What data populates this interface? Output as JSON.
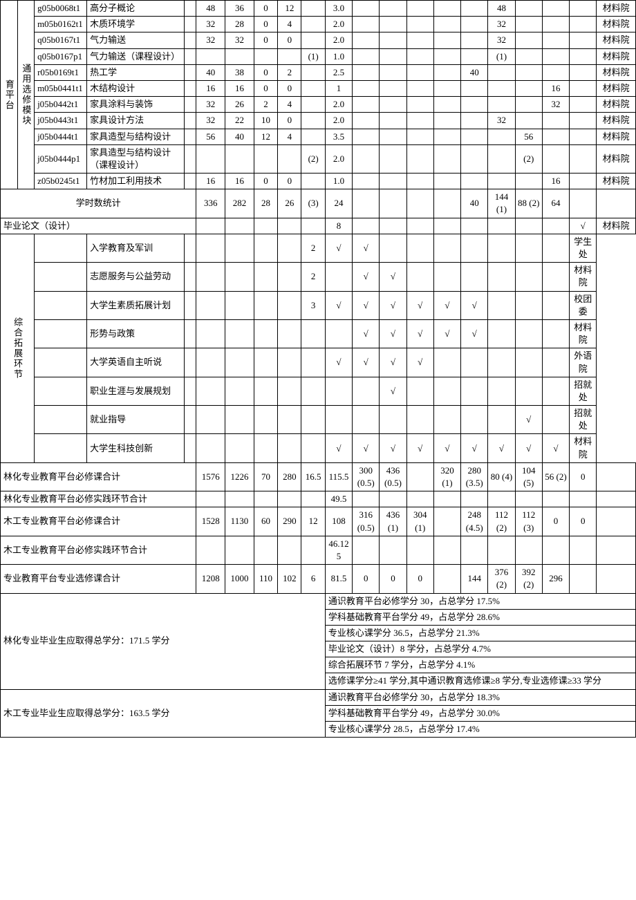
{
  "rows": [
    {
      "code": "g05b0068t1",
      "name": "高分子概论",
      "c": [
        "",
        "48",
        "36",
        "0",
        "12",
        "",
        "3.0",
        "",
        "",
        "",
        "",
        "",
        "48",
        "",
        "",
        "",
        "材料院"
      ]
    },
    {
      "code": "m05b0162t1",
      "name": "木质环境学",
      "c": [
        "",
        "32",
        "28",
        "0",
        "4",
        "",
        "2.0",
        "",
        "",
        "",
        "",
        "",
        "32",
        "",
        "",
        "",
        "材料院"
      ]
    },
    {
      "code": "q05b0167t1",
      "name": "气力输送",
      "c": [
        "",
        "32",
        "32",
        "0",
        "0",
        "",
        "2.0",
        "",
        "",
        "",
        "",
        "",
        "32",
        "",
        "",
        "",
        "材料院"
      ]
    },
    {
      "code": "q05b0167p1",
      "name": "气力输送（课程设计）",
      "c": [
        "",
        "",
        "",
        "",
        "",
        "(1)",
        "1.0",
        "",
        "",
        "",
        "",
        "",
        "(1)",
        "",
        "",
        "",
        "材料院"
      ]
    },
    {
      "code": "r05b0169t1",
      "name": "热工学",
      "c": [
        "",
        "40",
        "38",
        "0",
        "2",
        "",
        "2.5",
        "",
        "",
        "",
        "",
        "40",
        "",
        "",
        "",
        "",
        "材料院"
      ]
    },
    {
      "code": "m05b0441t1",
      "name": "木结构设计",
      "c": [
        "",
        "16",
        "16",
        "0",
        "0",
        "",
        "1",
        "",
        "",
        "",
        "",
        "",
        "",
        "",
        "16",
        "",
        "材料院"
      ]
    },
    {
      "code": "j05b0442t1",
      "name": "家具涂料与装饰",
      "c": [
        "",
        "32",
        "26",
        "2",
        "4",
        "",
        "2.0",
        "",
        "",
        "",
        "",
        "",
        "",
        "",
        "32",
        "",
        "材料院"
      ]
    },
    {
      "code": "j05b0443t1",
      "name": "家具设计方法",
      "c": [
        "",
        "32",
        "22",
        "10",
        "0",
        "",
        "2.0",
        "",
        "",
        "",
        "",
        "",
        "32",
        "",
        "",
        "",
        "材料院"
      ]
    },
    {
      "code": "j05b0444t1",
      "name": "家具造型与结构设计",
      "c": [
        "",
        "56",
        "40",
        "12",
        "4",
        "",
        "3.5",
        "",
        "",
        "",
        "",
        "",
        "",
        "56",
        "",
        "",
        "材料院"
      ]
    },
    {
      "code": "j05b0444p1",
      "name": "家具造型与结构设计（课程设计）",
      "c": [
        "",
        "",
        "",
        "",
        "",
        "(2)",
        "2.0",
        "",
        "",
        "",
        "",
        "",
        "",
        "(2)",
        "",
        "",
        "材料院"
      ]
    },
    {
      "code": "z05b0245t1",
      "name": "竹材加工利用技术",
      "c": [
        "",
        "16",
        "16",
        "0",
        "0",
        "",
        "1.0",
        "",
        "",
        "",
        "",
        "",
        "",
        "",
        "16",
        "",
        "材料院"
      ]
    }
  ],
  "platform_l1": "育平台",
  "platform_l2": "通用选修模块",
  "stats_label": "学时数统计",
  "stats": {
    "c": [
      "336",
      "282",
      "28",
      "26",
      "(3)",
      "24",
      "",
      "",
      "",
      "",
      "40",
      "144 (1)",
      "88 (2)",
      "64",
      "",
      ""
    ]
  },
  "thesis": {
    "label": "毕业论文（设计）",
    "credit": "8",
    "check_col": 15,
    "dept": "材料院"
  },
  "ext_label": "综合拓展环节",
  "ext_rows": [
    {
      "name": "入学教育及军训",
      "credit": "2",
      "checks": [
        7,
        8
      ],
      "dept": "学生处"
    },
    {
      "name": "志愿服务与公益劳动",
      "credit": "2",
      "checks": [
        8,
        9
      ],
      "dept": "材料院"
    },
    {
      "name": "大学生素质拓展计划",
      "credit": "3",
      "checks": [
        7,
        8,
        9,
        10,
        11,
        12
      ],
      "dept": "校团委"
    },
    {
      "name": "形势与政策",
      "credit": "",
      "checks": [
        8,
        9,
        10,
        11,
        12
      ],
      "dept": "材料院"
    },
    {
      "name": "大学英语自主听说",
      "credit": "",
      "checks": [
        7,
        8,
        9,
        10
      ],
      "dept": "外语院"
    },
    {
      "name": "职业生涯与发展规划",
      "credit": "",
      "checks": [
        9
      ],
      "dept": "招就处"
    },
    {
      "name": "就业指导",
      "credit": "",
      "checks": [
        14
      ],
      "dept": "招就处"
    },
    {
      "name": "大学生科技创新",
      "credit": "",
      "checks": [
        7,
        8,
        9,
        10,
        11,
        12,
        13,
        14,
        15
      ],
      "dept": "材料院"
    }
  ],
  "totals": [
    {
      "label": "林化专业教育平台必修课合计",
      "v": [
        "1576",
        "1226",
        "70",
        "280",
        "16.5",
        "115.5",
        "300 (0.5)",
        "436 (0.5)",
        "",
        "320 (1)",
        "280 (3.5)",
        "80 (4)",
        "104 (5)",
        "56 (2)",
        "0",
        ""
      ]
    },
    {
      "label": "林化专业教育平台必修实践环节合计",
      "v": [
        "",
        "",
        "",
        "",
        "",
        "49.5",
        "",
        "",
        "",
        "",
        "",
        "",
        "",
        "",
        "",
        ""
      ]
    },
    {
      "label": "木工专业教育平台必修课合计",
      "v": [
        "1528",
        "1130",
        "60",
        "290",
        "12",
        "108",
        "316 (0.5)",
        "436 (1)",
        "304 (1)",
        "",
        "248 (4.5)",
        "112 (2)",
        "112 (3)",
        "0",
        "0",
        ""
      ]
    },
    {
      "label": "木工专业教育平台必修实践环节合计",
      "v": [
        "",
        "",
        "",
        "",
        "",
        "46.125",
        "",
        "",
        "",
        "",
        "",
        "",
        "",
        "",
        "",
        ""
      ]
    },
    {
      "label": "专业教育平台专业选修课合计",
      "v": [
        "1208",
        "1000",
        "110",
        "102",
        "6",
        "81.5",
        "0",
        "0",
        "0",
        "",
        "144",
        "376 (2)",
        "392 (2)",
        "296",
        "",
        ""
      ]
    }
  ],
  "credit_sections": [
    {
      "label": "林化专业毕业生应取得总学分：171.5 学分",
      "lines": [
        "通识教育平台必修学分 30，占总学分 17.5%",
        "学科基础教育平台学分 49，占总学分 28.6%",
        "专业核心课学分 36.5，占总学分 21.3%",
        "毕业论文（设计）8 学分，占总学分 4.7%",
        "综合拓展环节 7 学分，占总学分 4.1%",
        "选修课学分≥41 学分,其中通识教育选修课≥8 学分,专业选修课≥33 学分"
      ]
    },
    {
      "label": "木工专业毕业生应取得总学分：163.5 学分",
      "lines": [
        "通识教育平台必修学分 30，占总学分 18.3%",
        "学科基础教育平台学分 49，占总学分 30.0%",
        "专业核心课学分 28.5，占总学分 17.4%"
      ]
    }
  ],
  "check": "√"
}
